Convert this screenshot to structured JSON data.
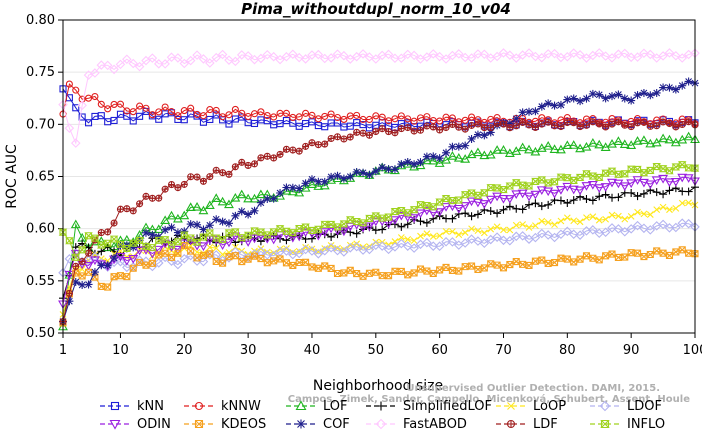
{
  "chart_data": {
    "type": "line",
    "title": "Pima_withoutdupl_norm_10_v04",
    "xlabel": "Neighborhood size",
    "ylabel": "ROC AUC",
    "xlim": [
      1,
      100
    ],
    "ylim": [
      0.5,
      0.8
    ],
    "xticks": [
      1,
      10,
      20,
      30,
      40,
      50,
      60,
      70,
      80,
      90,
      100
    ],
    "yticks": [
      0.5,
      0.55,
      0.6,
      0.65,
      0.7,
      0.75,
      0.8
    ],
    "legend_position": "bottom",
    "watermark": [
      "Unsupervised Outlier Detection. DAMI, 2015.",
      "Campos, Zimek, Sander, Campello, Micenková, Schubert, Assent, Houle"
    ],
    "series": [
      {
        "name": "kNN",
        "color": "#1f1fd6",
        "marker": "square",
        "points": [
          [
            1,
            0.738
          ],
          [
            3,
            0.712
          ],
          [
            5,
            0.705
          ],
          [
            10,
            0.706
          ],
          [
            15,
            0.709
          ],
          [
            20,
            0.707
          ],
          [
            30,
            0.703
          ],
          [
            40,
            0.7
          ],
          [
            50,
            0.699
          ],
          [
            60,
            0.7
          ],
          [
            70,
            0.7
          ],
          [
            80,
            0.701
          ],
          [
            90,
            0.702
          ],
          [
            100,
            0.702
          ]
        ]
      },
      {
        "name": "kNNW",
        "color": "#e01f1f",
        "marker": "circle",
        "points": [
          [
            1,
            0.712
          ],
          [
            2,
            0.735
          ],
          [
            4,
            0.728
          ],
          [
            7,
            0.72
          ],
          [
            10,
            0.716
          ],
          [
            15,
            0.713
          ],
          [
            20,
            0.712
          ],
          [
            30,
            0.71
          ],
          [
            40,
            0.708
          ],
          [
            50,
            0.706
          ],
          [
            60,
            0.705
          ],
          [
            70,
            0.704
          ],
          [
            80,
            0.704
          ],
          [
            90,
            0.703
          ],
          [
            100,
            0.703
          ]
        ]
      },
      {
        "name": "LOF",
        "color": "#1fb51f",
        "marker": "triangle-up",
        "points": [
          [
            1,
            0.51
          ],
          [
            3,
            0.6
          ],
          [
            5,
            0.585
          ],
          [
            10,
            0.585
          ],
          [
            15,
            0.6
          ],
          [
            20,
            0.615
          ],
          [
            25,
            0.625
          ],
          [
            30,
            0.63
          ],
          [
            35,
            0.632
          ],
          [
            40,
            0.64
          ],
          [
            45,
            0.648
          ],
          [
            50,
            0.655
          ],
          [
            55,
            0.66
          ],
          [
            60,
            0.665
          ],
          [
            65,
            0.67
          ],
          [
            70,
            0.674
          ],
          [
            75,
            0.676
          ],
          [
            80,
            0.678
          ],
          [
            85,
            0.68
          ],
          [
            90,
            0.682
          ],
          [
            95,
            0.684
          ],
          [
            100,
            0.686
          ]
        ]
      },
      {
        "name": "SimplifiedLOF",
        "color": "#000000",
        "marker": "plus",
        "points": [
          [
            1,
            0.53
          ],
          [
            3,
            0.585
          ],
          [
            5,
            0.58
          ],
          [
            10,
            0.578
          ],
          [
            15,
            0.588
          ],
          [
            20,
            0.59
          ],
          [
            30,
            0.59
          ],
          [
            40,
            0.592
          ],
          [
            50,
            0.6
          ],
          [
            60,
            0.61
          ],
          [
            70,
            0.618
          ],
          [
            80,
            0.627
          ],
          [
            90,
            0.633
          ],
          [
            100,
            0.638
          ]
        ]
      },
      {
        "name": "LoOP",
        "color": "#ffe81f",
        "marker": "x",
        "points": [
          [
            1,
            0.52
          ],
          [
            3,
            0.56
          ],
          [
            5,
            0.57
          ],
          [
            10,
            0.575
          ],
          [
            20,
            0.58
          ],
          [
            30,
            0.578
          ],
          [
            40,
            0.58
          ],
          [
            50,
            0.585
          ],
          [
            60,
            0.595
          ],
          [
            70,
            0.6
          ],
          [
            80,
            0.608
          ],
          [
            90,
            0.612
          ],
          [
            100,
            0.625
          ]
        ]
      },
      {
        "name": "LDOF",
        "color": "#b4b4f0",
        "marker": "diamond",
        "points": [
          [
            1,
            0.56
          ],
          [
            3,
            0.575
          ],
          [
            5,
            0.57
          ],
          [
            10,
            0.565
          ],
          [
            20,
            0.57
          ],
          [
            30,
            0.575
          ],
          [
            40,
            0.578
          ],
          [
            50,
            0.582
          ],
          [
            60,
            0.585
          ],
          [
            70,
            0.59
          ],
          [
            80,
            0.595
          ],
          [
            90,
            0.6
          ],
          [
            100,
            0.604
          ]
        ]
      },
      {
        "name": "ODIN",
        "color": "#9a1fe0",
        "marker": "triangle-down",
        "points": [
          [
            1,
            0.53
          ],
          [
            3,
            0.575
          ],
          [
            5,
            0.565
          ],
          [
            10,
            0.57
          ],
          [
            15,
            0.58
          ],
          [
            20,
            0.585
          ],
          [
            30,
            0.59
          ],
          [
            40,
            0.595
          ],
          [
            50,
            0.605
          ],
          [
            60,
            0.618
          ],
          [
            70,
            0.63
          ],
          [
            80,
            0.638
          ],
          [
            90,
            0.644
          ],
          [
            100,
            0.648
          ]
        ]
      },
      {
        "name": "KDEOS",
        "color": "#f5a01f",
        "marker": "square-x",
        "points": [
          [
            1,
            0.508
          ],
          [
            3,
            0.56
          ],
          [
            5,
            0.555
          ],
          [
            8,
            0.545
          ],
          [
            10,
            0.555
          ],
          [
            15,
            0.57
          ],
          [
            20,
            0.58
          ],
          [
            25,
            0.57
          ],
          [
            30,
            0.572
          ],
          [
            40,
            0.565
          ],
          [
            45,
            0.558
          ],
          [
            50,
            0.556
          ],
          [
            55,
            0.558
          ],
          [
            60,
            0.56
          ],
          [
            70,
            0.565
          ],
          [
            80,
            0.57
          ],
          [
            90,
            0.575
          ],
          [
            100,
            0.578
          ]
        ]
      },
      {
        "name": "COF",
        "color": "#1f1f8c",
        "marker": "asterisk",
        "points": [
          [
            1,
            0.515
          ],
          [
            3,
            0.545
          ],
          [
            5,
            0.55
          ],
          [
            10,
            0.58
          ],
          [
            15,
            0.595
          ],
          [
            20,
            0.6
          ],
          [
            25,
            0.605
          ],
          [
            30,
            0.615
          ],
          [
            35,
            0.635
          ],
          [
            40,
            0.645
          ],
          [
            45,
            0.65
          ],
          [
            50,
            0.655
          ],
          [
            55,
            0.662
          ],
          [
            60,
            0.67
          ],
          [
            65,
            0.685
          ],
          [
            70,
            0.7
          ],
          [
            75,
            0.715
          ],
          [
            80,
            0.722
          ],
          [
            85,
            0.728
          ],
          [
            90,
            0.725
          ],
          [
            95,
            0.733
          ],
          [
            100,
            0.74
          ]
        ]
      },
      {
        "name": "FastABOD",
        "color": "#ffc8ff",
        "marker": "diamond",
        "points": [
          [
            1,
            0.72
          ],
          [
            3,
            0.68
          ],
          [
            5,
            0.75
          ],
          [
            8,
            0.755
          ],
          [
            10,
            0.758
          ],
          [
            15,
            0.76
          ],
          [
            20,
            0.762
          ],
          [
            30,
            0.764
          ],
          [
            40,
            0.765
          ],
          [
            50,
            0.765
          ],
          [
            60,
            0.765
          ],
          [
            70,
            0.766
          ],
          [
            80,
            0.766
          ],
          [
            90,
            0.766
          ],
          [
            100,
            0.766
          ]
        ]
      },
      {
        "name": "LDF",
        "color": "#a01f1f",
        "marker": "circle-plus",
        "points": [
          [
            1,
            0.515
          ],
          [
            3,
            0.56
          ],
          [
            5,
            0.58
          ],
          [
            8,
            0.6
          ],
          [
            10,
            0.615
          ],
          [
            15,
            0.63
          ],
          [
            20,
            0.645
          ],
          [
            25,
            0.652
          ],
          [
            30,
            0.662
          ],
          [
            35,
            0.672
          ],
          [
            40,
            0.68
          ],
          [
            45,
            0.688
          ],
          [
            50,
            0.693
          ],
          [
            55,
            0.695
          ],
          [
            60,
            0.697
          ],
          [
            70,
            0.699
          ],
          [
            80,
            0.7
          ],
          [
            90,
            0.7
          ],
          [
            100,
            0.7
          ]
        ]
      },
      {
        "name": "INFLO",
        "color": "#a0d21f",
        "marker": "hourglass",
        "points": [
          [
            1,
            0.595
          ],
          [
            3,
            0.575
          ],
          [
            5,
            0.59
          ],
          [
            10,
            0.585
          ],
          [
            15,
            0.585
          ],
          [
            20,
            0.59
          ],
          [
            30,
            0.595
          ],
          [
            40,
            0.6
          ],
          [
            50,
            0.61
          ],
          [
            60,
            0.625
          ],
          [
            70,
            0.64
          ],
          [
            80,
            0.648
          ],
          [
            90,
            0.655
          ],
          [
            100,
            0.66
          ]
        ]
      }
    ]
  }
}
